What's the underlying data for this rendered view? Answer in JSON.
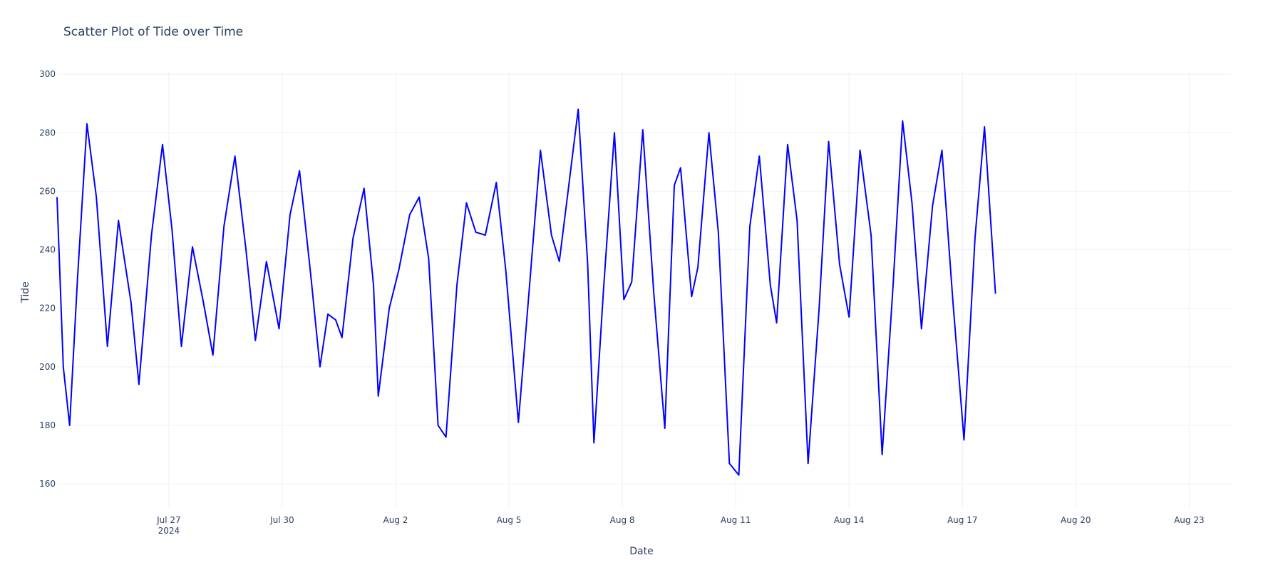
{
  "chart_data": {
    "type": "line",
    "title": "Scatter Plot of Tide over Time",
    "xlabel": "Date",
    "ylabel": "Tide",
    "x_range": [
      "2024-07-24T01:00",
      "2024-08-24T03:00"
    ],
    "ylim": [
      152,
      301
    ],
    "x_ticks": [
      {
        "date": "2024-07-27",
        "label": "Jul 27",
        "sublabel": "2024"
      },
      {
        "date": "2024-07-30",
        "label": "Jul 30"
      },
      {
        "date": "2024-08-02",
        "label": "Aug 2"
      },
      {
        "date": "2024-08-05",
        "label": "Aug 5"
      },
      {
        "date": "2024-08-08",
        "label": "Aug 8"
      },
      {
        "date": "2024-08-11",
        "label": "Aug 11"
      },
      {
        "date": "2024-08-14",
        "label": "Aug 14"
      },
      {
        "date": "2024-08-17",
        "label": "Aug 17"
      },
      {
        "date": "2024-08-20",
        "label": "Aug 20"
      },
      {
        "date": "2024-08-23",
        "label": "Aug 23"
      }
    ],
    "y_ticks": [
      160,
      180,
      200,
      220,
      240,
      260,
      280,
      300
    ],
    "grid": true,
    "series": [
      {
        "color": "#0000ff",
        "points": [
          [
            "2024-07-24T01:00",
            258
          ],
          [
            "2024-07-24T05:00",
            200
          ],
          [
            "2024-07-24T09:00",
            180
          ],
          [
            "2024-07-24T14:00",
            230
          ],
          [
            "2024-07-24T20:00",
            283
          ],
          [
            "2024-07-25T02:00",
            258
          ],
          [
            "2024-07-25T09:00",
            207
          ],
          [
            "2024-07-25T16:00",
            250
          ],
          [
            "2024-07-26T00:00",
            222
          ],
          [
            "2024-07-26T05:00",
            194
          ],
          [
            "2024-07-26T13:00",
            245
          ],
          [
            "2024-07-26T20:00",
            276
          ],
          [
            "2024-07-27T02:00",
            247
          ],
          [
            "2024-07-27T08:00",
            207
          ],
          [
            "2024-07-27T15:00",
            241
          ],
          [
            "2024-07-27T22:00",
            222
          ],
          [
            "2024-07-28T04:00",
            204
          ],
          [
            "2024-07-28T11:00",
            248
          ],
          [
            "2024-07-28T18:00",
            272
          ],
          [
            "2024-07-29T01:00",
            240
          ],
          [
            "2024-07-29T07:00",
            209
          ],
          [
            "2024-07-29T14:00",
            236
          ],
          [
            "2024-07-29T22:00",
            213
          ],
          [
            "2024-07-30T05:00",
            252
          ],
          [
            "2024-07-30T11:00",
            267
          ],
          [
            "2024-07-30T18:00",
            232
          ],
          [
            "2024-07-31T00:00",
            200
          ],
          [
            "2024-07-31T05:00",
            218
          ],
          [
            "2024-07-31T10:00",
            216
          ],
          [
            "2024-07-31T14:00",
            210
          ],
          [
            "2024-07-31T21:00",
            244
          ],
          [
            "2024-08-01T04:00",
            261
          ],
          [
            "2024-08-01T10:00",
            228
          ],
          [
            "2024-08-01T13:00",
            190
          ],
          [
            "2024-08-01T20:00",
            220
          ],
          [
            "2024-08-02T02:00",
            233
          ],
          [
            "2024-08-02T09:00",
            252
          ],
          [
            "2024-08-02T15:00",
            258
          ],
          [
            "2024-08-02T21:00",
            237
          ],
          [
            "2024-08-03T03:00",
            180
          ],
          [
            "2024-08-03T08:00",
            176
          ],
          [
            "2024-08-03T15:00",
            228
          ],
          [
            "2024-08-03T21:00",
            256
          ],
          [
            "2024-08-04T03:00",
            246
          ],
          [
            "2024-08-04T09:00",
            245
          ],
          [
            "2024-08-04T16:00",
            263
          ],
          [
            "2024-08-04T22:00",
            233
          ],
          [
            "2024-08-05T06:00",
            181
          ],
          [
            "2024-08-05T13:00",
            227
          ],
          [
            "2024-08-05T20:00",
            274
          ],
          [
            "2024-08-06T03:00",
            245
          ],
          [
            "2024-08-06T08:00",
            236
          ],
          [
            "2024-08-06T14:00",
            262
          ],
          [
            "2024-08-06T20:00",
            288
          ],
          [
            "2024-08-07T02:00",
            235
          ],
          [
            "2024-08-07T06:00",
            174
          ],
          [
            "2024-08-07T12:00",
            226
          ],
          [
            "2024-08-07T19:00",
            280
          ],
          [
            "2024-08-08T01:00",
            223
          ],
          [
            "2024-08-08T06:00",
            229
          ],
          [
            "2024-08-08T13:00",
            281
          ],
          [
            "2024-08-08T20:00",
            225
          ],
          [
            "2024-08-09T03:00",
            179
          ],
          [
            "2024-08-09T09:00",
            262
          ],
          [
            "2024-08-09T13:00",
            268
          ],
          [
            "2024-08-09T20:00",
            224
          ],
          [
            "2024-08-10T00:00",
            234
          ],
          [
            "2024-08-10T07:00",
            280
          ],
          [
            "2024-08-10T13:00",
            246
          ],
          [
            "2024-08-10T20:00",
            167
          ],
          [
            "2024-08-11T02:00",
            163
          ],
          [
            "2024-08-11T09:00",
            248
          ],
          [
            "2024-08-11T15:00",
            272
          ],
          [
            "2024-08-11T22:00",
            228
          ],
          [
            "2024-08-12T02:00",
            215
          ],
          [
            "2024-08-12T09:00",
            276
          ],
          [
            "2024-08-12T15:00",
            250
          ],
          [
            "2024-08-12T22:00",
            167
          ],
          [
            "2024-08-13T05:00",
            220
          ],
          [
            "2024-08-13T11:00",
            277
          ],
          [
            "2024-08-13T18:00",
            235
          ],
          [
            "2024-08-14T00:00",
            217
          ],
          [
            "2024-08-14T07:00",
            274
          ],
          [
            "2024-08-14T14:00",
            245
          ],
          [
            "2024-08-14T21:00",
            170
          ],
          [
            "2024-08-15T04:00",
            228
          ],
          [
            "2024-08-15T10:00",
            284
          ],
          [
            "2024-08-15T16:00",
            256
          ],
          [
            "2024-08-15T22:00",
            213
          ],
          [
            "2024-08-16T05:00",
            255
          ],
          [
            "2024-08-16T11:00",
            274
          ],
          [
            "2024-08-16T18:00",
            222
          ],
          [
            "2024-08-17T01:00",
            175
          ],
          [
            "2024-08-17T08:00",
            244
          ],
          [
            "2024-08-17T14:00",
            282
          ],
          [
            "2024-08-17T21:00",
            225
          ]
        ]
      }
    ]
  }
}
